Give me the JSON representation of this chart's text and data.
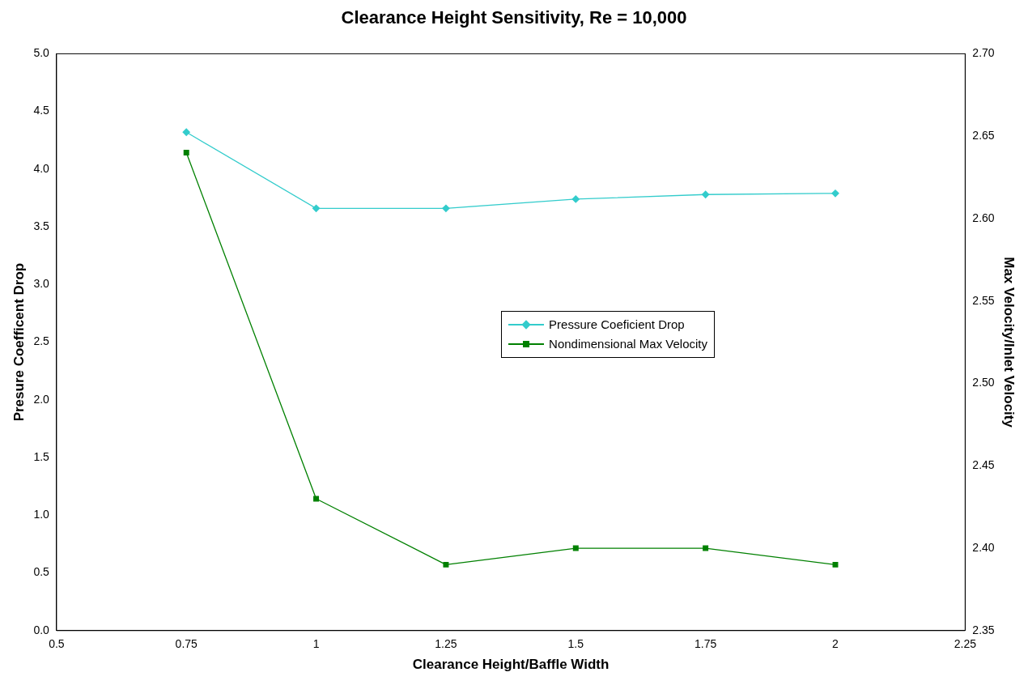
{
  "chart_data": {
    "type": "line",
    "title": "Clearance Height Sensitivity, Re = 10,000",
    "xlabel": "Clearance Height/Baffle Width",
    "ylabel": "Presure Coefficent Drop",
    "y2label": "Max Velocity/Inlet Velocity",
    "x": [
      0.75,
      1,
      1.25,
      1.5,
      1.75,
      2
    ],
    "series": [
      {
        "name": "Pressure Coeficient Drop",
        "color": "#33cccc",
        "marker": "diamond",
        "values": [
          4.32,
          3.66,
          3.66,
          3.74,
          3.78,
          3.79
        ]
      },
      {
        "name": "Nondimensional Max Velocity",
        "color": "#008000",
        "marker": "square",
        "axis": "y2",
        "values": [
          2.64,
          2.43,
          2.39,
          2.4,
          2.4,
          2.39
        ]
      }
    ],
    "xlim": [
      0.5,
      2.25
    ],
    "xticks": [
      0.5,
      0.75,
      1,
      1.25,
      1.5,
      1.75,
      2,
      2.25
    ],
    "ylim": [
      0,
      5
    ],
    "yticks": [
      {
        "value": 0,
        "label": "0.0"
      },
      0.5,
      {
        "value": 1,
        "label": "1.0"
      },
      1.5,
      {
        "value": 2,
        "label": "2.0"
      },
      2.5,
      {
        "value": 3,
        "label": "3.0"
      },
      3.5,
      {
        "value": 4,
        "label": "4.0"
      },
      4.5,
      {
        "value": 5,
        "label": "5.0"
      }
    ],
    "y2lim": [
      2.35,
      2.7
    ],
    "y2ticks": [
      2.35,
      {
        "value": 2.4,
        "label": "2.40"
      },
      2.45,
      {
        "value": 2.5,
        "label": "2.50"
      },
      2.55,
      {
        "value": 2.6,
        "label": "2.60"
      },
      2.65,
      {
        "value": 2.7,
        "label": "2.70"
      }
    ],
    "grid": false,
    "legend": "center"
  }
}
